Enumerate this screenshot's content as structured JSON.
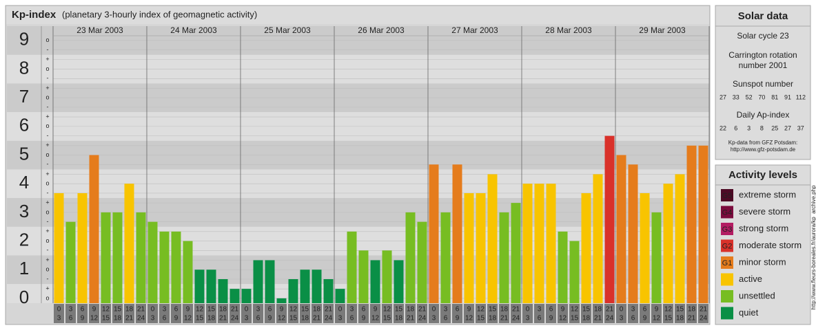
{
  "header": {
    "title": "Kp-index",
    "subtitle": "(planetary 3-hourly index of geomagnetic activity)"
  },
  "chart_data": {
    "type": "bar",
    "days": [
      "23 Mar 2003",
      "24 Mar 2003",
      "25 Mar 2003",
      "26 Mar 2003",
      "27 Mar 2003",
      "28 Mar 2003",
      "29 Mar 2003"
    ],
    "hour_slots": [
      {
        "start": 0,
        "end": 3
      },
      {
        "start": 3,
        "end": 6
      },
      {
        "start": 6,
        "end": 9
      },
      {
        "start": 9,
        "end": 12
      },
      {
        "start": 12,
        "end": 15
      },
      {
        "start": 15,
        "end": 18
      },
      {
        "start": 18,
        "end": 21
      },
      {
        "start": 21,
        "end": 24
      }
    ],
    "values": [
      3.67,
      2.67,
      3.67,
      5,
      3,
      3,
      4,
      3,
      2.67,
      2.33,
      2.33,
      2,
      1,
      1,
      0.67,
      0.33,
      0.33,
      1.33,
      1.33,
      0,
      0.67,
      1,
      1,
      0.67,
      0.33,
      2.33,
      1.67,
      1.33,
      1.67,
      1.33,
      3,
      2.67,
      4.67,
      3,
      4.67,
      3.67,
      3.67,
      4.33,
      3,
      3.33,
      4,
      4,
      4,
      2.33,
      2,
      3.67,
      4.33,
      5.67,
      5,
      4.67,
      3.67,
      3,
      4,
      4.33,
      5.33,
      5.33
    ],
    "colors": [
      "#f8c400",
      "#77bd22",
      "#f8c400",
      "#e57c1c",
      "#77bd22",
      "#77bd22",
      "#f8c400",
      "#77bd22",
      "#77bd22",
      "#77bd22",
      "#77bd22",
      "#77bd22",
      "#0a8f46",
      "#0a8f46",
      "#0a8f46",
      "#0a8f46",
      "#0a8f46",
      "#0a8f46",
      "#0a8f46",
      "#0a8f46",
      "#0a8f46",
      "#0a8f46",
      "#0a8f46",
      "#0a8f46",
      "#0a8f46",
      "#77bd22",
      "#77bd22",
      "#0a8f46",
      "#77bd22",
      "#0a8f46",
      "#77bd22",
      "#77bd22",
      "#e57c1c",
      "#77bd22",
      "#e57c1c",
      "#f8c400",
      "#f8c400",
      "#f8c400",
      "#77bd22",
      "#77bd22",
      "#f8c400",
      "#f8c400",
      "#f8c400",
      "#77bd22",
      "#77bd22",
      "#f8c400",
      "#f8c400",
      "#d9312a",
      "#e57c1c",
      "#e57c1c",
      "#f8c400",
      "#77bd22",
      "#f8c400",
      "#f8c400",
      "#e57c1c",
      "#e57c1c"
    ],
    "ylim": [
      -0.17,
      9.5
    ],
    "yticks": [
      0,
      1,
      2,
      3,
      4,
      5,
      6,
      7,
      8,
      9
    ],
    "minor_yticks": [
      {
        "value": 0,
        "label": "o"
      },
      {
        "value": 0.33,
        "label": "+"
      },
      {
        "value": 0.67,
        "label": "-"
      },
      {
        "value": 1,
        "label": "o"
      },
      {
        "value": 1.33,
        "label": "+"
      },
      {
        "value": 1.67,
        "label": "-"
      },
      {
        "value": 2,
        "label": "o"
      },
      {
        "value": 2.33,
        "label": "+"
      },
      {
        "value": 2.67,
        "label": "-"
      },
      {
        "value": 3,
        "label": "o"
      },
      {
        "value": 3.33,
        "label": "+"
      },
      {
        "value": 3.67,
        "label": "-"
      },
      {
        "value": 4,
        "label": "o"
      },
      {
        "value": 4.33,
        "label": "+"
      },
      {
        "value": 4.67,
        "label": "-"
      },
      {
        "value": 5,
        "label": "o"
      },
      {
        "value": 5.33,
        "label": "+"
      },
      {
        "value": 5.67,
        "label": "-"
      },
      {
        "value": 6,
        "label": "o"
      },
      {
        "value": 6.33,
        "label": "+"
      },
      {
        "value": 6.67,
        "label": "-"
      },
      {
        "value": 7,
        "label": "o"
      },
      {
        "value": 7.33,
        "label": "+"
      },
      {
        "value": 7.67,
        "label": "-"
      },
      {
        "value": 8,
        "label": "o"
      },
      {
        "value": 8.33,
        "label": "+"
      },
      {
        "value": 8.67,
        "label": "-"
      },
      {
        "value": 9,
        "label": "o"
      }
    ],
    "band_colors": [
      "#dedede",
      "#cbcbcb"
    ]
  },
  "solar_data": {
    "title": "Solar data",
    "cycle": "Solar cycle 23",
    "carrington": [
      "Carrington rotation",
      "number 2001"
    ],
    "sunspot_title": "Sunspot number",
    "sunspot": [
      27,
      33,
      52,
      70,
      81,
      91,
      112
    ],
    "ap_title": "Daily Ap-index",
    "ap": [
      22,
      6,
      3,
      8,
      25,
      27,
      37
    ],
    "source": [
      "Kp-data from GFZ Potsdam:",
      "http://www.gfz-potsdam.de"
    ]
  },
  "activity_levels": {
    "title": "Activity levels",
    "items": [
      {
        "badge": "G5",
        "label": "extreme storm",
        "color": "#4e0a25"
      },
      {
        "badge": "G4",
        "label": "severe storm",
        "color": "#7b0b3d"
      },
      {
        "badge": "G3",
        "label": "strong storm",
        "color": "#b31c62"
      },
      {
        "badge": "G2",
        "label": "moderate storm",
        "color": "#d9312a"
      },
      {
        "badge": "G1",
        "label": "minor storm",
        "color": "#e57c1c"
      },
      {
        "label": "active",
        "color": "#f8c400"
      },
      {
        "label": "unsettled",
        "color": "#77bd22"
      },
      {
        "label": "quiet",
        "color": "#0a8f46"
      }
    ]
  },
  "credit": "http://www.fleurs-boreales.fr/aurora/kp_archive.php"
}
